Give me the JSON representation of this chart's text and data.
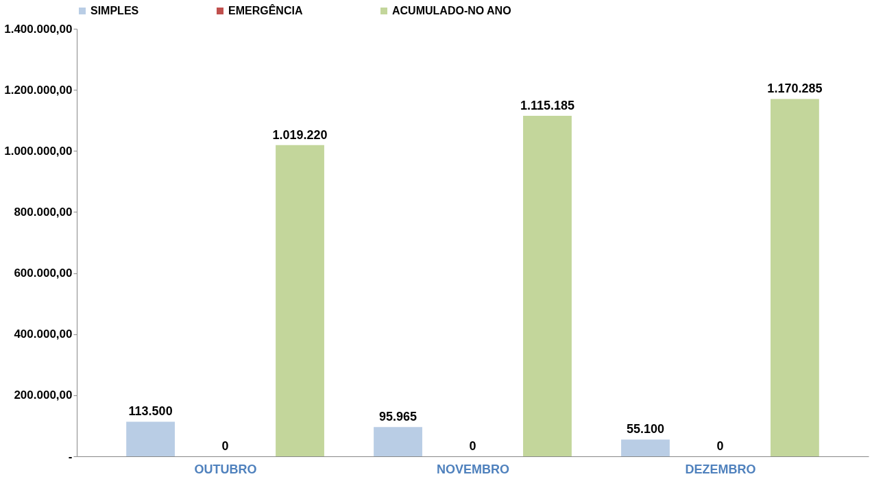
{
  "chart_data": {
    "type": "bar",
    "categories": [
      "OUTUBRO",
      "NOVEMBRO",
      "DEZEMBRO"
    ],
    "series": [
      {
        "name": "SIMPLES",
        "color": "#b9cde5",
        "values": [
          113500,
          95965,
          55100
        ],
        "value_labels": [
          "113.500",
          "95.965",
          "55.100"
        ]
      },
      {
        "name": "EMERGÊNCIA",
        "color": "#c0504d",
        "values": [
          0,
          0,
          0
        ],
        "value_labels": [
          "0",
          "0",
          "0"
        ]
      },
      {
        "name": "ACUMULADO-NO ANO",
        "color": "#c3d69b",
        "values": [
          1019220,
          1115185,
          1170285
        ],
        "value_labels": [
          "1.019.220",
          "1.115.185",
          "1.170.285"
        ]
      }
    ],
    "ylim": [
      0,
      1400000
    ],
    "yticks": [
      {
        "value": 0,
        "label": "-"
      },
      {
        "value": 200000,
        "label": "200.000,00"
      },
      {
        "value": 400000,
        "label": "400.000,00"
      },
      {
        "value": 600000,
        "label": "600.000,00"
      },
      {
        "value": 800000,
        "label": "800.000,00"
      },
      {
        "value": 1000000,
        "label": "1.000.000,00"
      },
      {
        "value": 1200000,
        "label": "1.200.000,00"
      },
      {
        "value": 1400000,
        "label": "1.400.000,00"
      }
    ],
    "grid": false,
    "legend": "top"
  }
}
